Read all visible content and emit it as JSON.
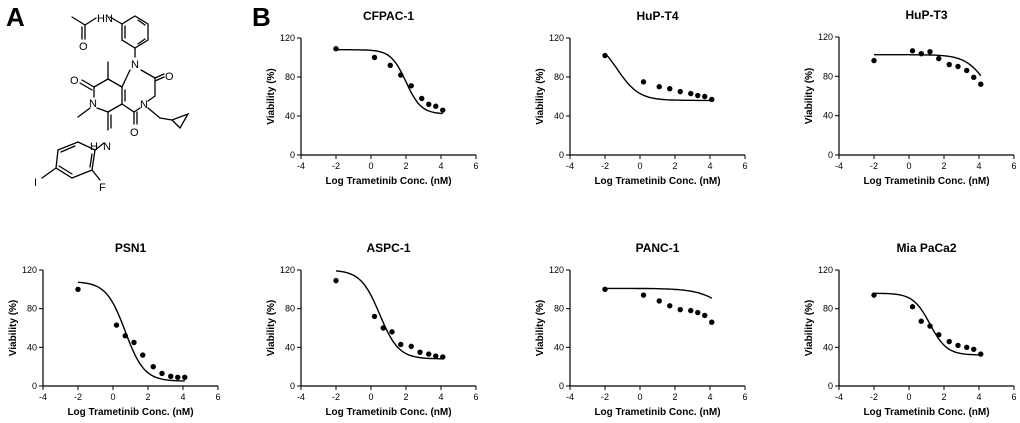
{
  "panel_labels": {
    "a": "A",
    "b": "B"
  },
  "molecule": {
    "atoms": {
      "nh_amide": "HN",
      "o_amide": "O",
      "n1": "N",
      "o_left": "O",
      "o_right": "O",
      "n_methyl": "N",
      "n_cyclopropyl": "N",
      "o_bottom": "O",
      "nh_aniline": "H",
      "n_aniline": "N",
      "f": "F",
      "i": "I"
    }
  },
  "colors": {
    "ink": "#000000",
    "background": "#ffffff"
  },
  "chart_data": [
    {
      "type": "scatter",
      "title": "CFPAC-1",
      "xlabel": "Log Trametinib Conc.  (nM)",
      "ylabel": "Viability (%)",
      "xlim": [
        -4,
        6
      ],
      "ylim": [
        0,
        120
      ],
      "xticks": [
        "-4",
        "-2",
        "0",
        "2",
        "4",
        "6"
      ],
      "yticks": [
        "0",
        "40",
        "80",
        "120"
      ],
      "points": {
        "x": [
          -2,
          0.2,
          1.1,
          1.7,
          2.3,
          2.9,
          3.3,
          3.7,
          4.1
        ],
        "y": [
          109,
          100,
          92,
          82,
          71,
          58,
          52,
          50,
          46
        ]
      },
      "fit": {
        "top": 108,
        "bottom": 42,
        "ec50_log": 2.0,
        "hill": 1.0
      }
    },
    {
      "type": "scatter",
      "title": "HuP-T4",
      "xlabel": "Log Trametinib Conc.  (nM)",
      "ylabel": "Viability (%)",
      "xlim": [
        -4,
        6
      ],
      "ylim": [
        0,
        120
      ],
      "xticks": [
        "-4",
        "-2",
        "0",
        "2",
        "4",
        "6"
      ],
      "yticks": [
        "0",
        "40",
        "80",
        "120"
      ],
      "points": {
        "x": [
          -2,
          0.2,
          1.1,
          1.7,
          2.3,
          2.9,
          3.3,
          3.7,
          4.1
        ],
        "y": [
          102,
          75,
          70,
          68,
          65,
          63,
          61,
          60,
          57
        ]
      },
      "fit": {
        "top": 120,
        "bottom": 56,
        "ec50_log": -1.3,
        "hill": 0.7
      }
    },
    {
      "type": "scatter",
      "title": "HuP-T3",
      "xlabel": "Log Trametinib Conc.  (nM)",
      "ylabel": "Viability (%)",
      "xlim": [
        -4,
        6
      ],
      "ylim": [
        0,
        120
      ],
      "xticks": [
        "-4",
        "-2",
        "0",
        "2",
        "4",
        "6"
      ],
      "yticks": [
        "0",
        "40",
        "80",
        "120"
      ],
      "points": {
        "x": [
          -2,
          0.2,
          0.7,
          1.2,
          1.7,
          2.3,
          2.8,
          3.3,
          3.7,
          4.1
        ],
        "y": [
          96,
          106,
          103,
          105,
          98,
          92,
          90,
          86,
          79,
          72
        ]
      },
      "fit": {
        "top": 102,
        "bottom": 40,
        "ec50_log": 4.5,
        "hill": 0.7
      }
    },
    {
      "type": "scatter",
      "title": "PSN1",
      "xlabel": "Log Trametinib Conc.  (nM)",
      "ylabel": "Viability (%)",
      "xlim": [
        -4,
        6
      ],
      "ylim": [
        0,
        120
      ],
      "xticks": [
        "-4",
        "-2",
        "0",
        "2",
        "4",
        "6"
      ],
      "yticks": [
        "0",
        "40",
        "80",
        "120"
      ],
      "points": {
        "x": [
          -2,
          0.2,
          0.7,
          1.2,
          1.7,
          2.3,
          2.8,
          3.3,
          3.7,
          4.1
        ],
        "y": [
          100,
          63,
          52,
          45,
          32,
          20,
          13,
          10,
          9,
          9
        ]
      },
      "fit": {
        "top": 108,
        "bottom": 5,
        "ec50_log": 0.7,
        "hill": 0.8
      }
    },
    {
      "type": "scatter",
      "title": "ASPC-1",
      "xlabel": "Log Trametinib Conc.  (nM)",
      "ylabel": "Viability (%)",
      "xlim": [
        -4,
        6
      ],
      "ylim": [
        0,
        120
      ],
      "xticks": [
        "-4",
        "-2",
        "0",
        "2",
        "4",
        "6"
      ],
      "yticks": [
        "0",
        "40",
        "80",
        "120"
      ],
      "points": {
        "x": [
          -2,
          0.2,
          0.7,
          1.2,
          1.7,
          2.3,
          2.8,
          3.3,
          3.7,
          4.1
        ],
        "y": [
          109,
          72,
          60,
          56,
          43,
          41,
          35,
          33,
          31,
          30
        ]
      },
      "fit": {
        "top": 120,
        "bottom": 28,
        "ec50_log": 0.5,
        "hill": 0.8
      }
    },
    {
      "type": "scatter",
      "title": "PANC-1",
      "xlabel": "Log Trametinib Conc.  (nM)",
      "ylabel": "Viability (%)",
      "xlim": [
        -4,
        6
      ],
      "ylim": [
        0,
        120
      ],
      "xticks": [
        "-4",
        "-2",
        "0",
        "2",
        "4",
        "6"
      ],
      "yticks": [
        "0",
        "40",
        "80",
        "120"
      ],
      "points": {
        "x": [
          -2,
          0.2,
          1.1,
          1.7,
          2.3,
          2.9,
          3.3,
          3.7,
          4.1
        ],
        "y": [
          100,
          94,
          88,
          83,
          79,
          78,
          76,
          73,
          66
        ]
      },
      "fit": {
        "top": 101,
        "bottom": 40,
        "ec50_log": 5.5,
        "hill": 0.5
      }
    },
    {
      "type": "scatter",
      "title": "Mia PaCa2",
      "xlabel": "Log Trametinib Conc.  (nM)",
      "ylabel": "Viability (%)",
      "xlim": [
        -4,
        6
      ],
      "ylim": [
        0,
        120
      ],
      "xticks": [
        "-4",
        "-2",
        "0",
        "2",
        "4",
        "6"
      ],
      "yticks": [
        "0",
        "40",
        "80",
        "120"
      ],
      "points": {
        "x": [
          -2,
          0.2,
          0.7,
          1.2,
          1.7,
          2.3,
          2.8,
          3.3,
          3.7,
          4.1
        ],
        "y": [
          94,
          82,
          67,
          62,
          53,
          46,
          42,
          40,
          38,
          33
        ]
      },
      "fit": {
        "top": 96,
        "bottom": 32,
        "ec50_log": 1.2,
        "hill": 0.9
      }
    }
  ]
}
